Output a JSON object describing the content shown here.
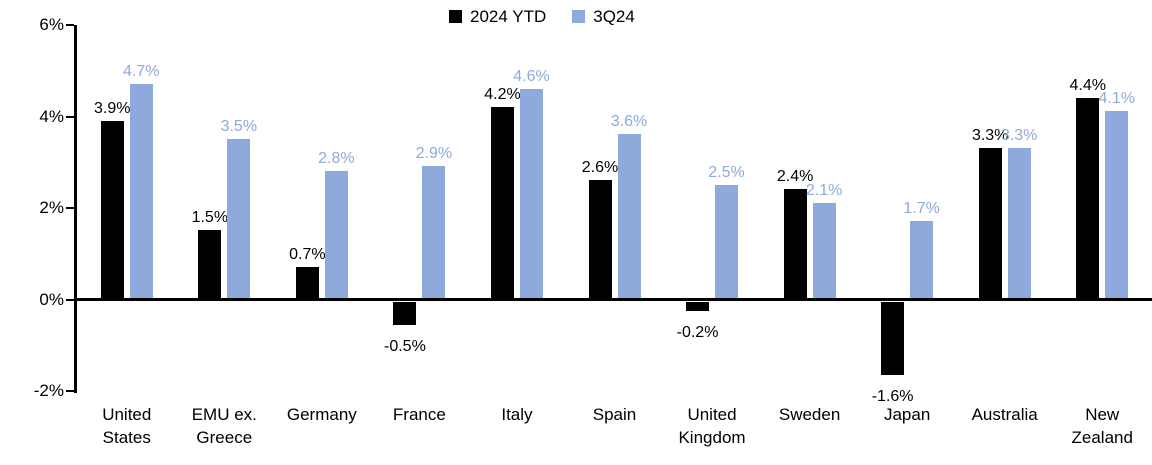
{
  "chart_data": {
    "type": "bar",
    "title": "",
    "categories": [
      "United\nStates",
      "EMU ex.\nGreece",
      "Germany",
      "France",
      "Italy",
      "Spain",
      "United\nKingdom",
      "Sweden",
      "Japan",
      "Australia",
      "New\nZealand"
    ],
    "series": [
      {
        "name": "2024 YTD",
        "color": "#000000",
        "values": [
          3.9,
          1.5,
          0.7,
          -0.5,
          4.2,
          2.6,
          -0.2,
          2.4,
          -1.6,
          3.3,
          4.4
        ],
        "labels": [
          "3.9%",
          "1.5%",
          "0.7%",
          "-0.5%",
          "4.2%",
          "2.6%",
          "-0.2%",
          "2.4%",
          "-1.6%",
          "3.3%",
          "4.4%"
        ]
      },
      {
        "name": "3Q24",
        "color": "#8EA9DB",
        "values": [
          4.7,
          3.5,
          2.8,
          2.9,
          4.6,
          3.6,
          2.5,
          2.1,
          1.7,
          3.3,
          4.1
        ],
        "labels": [
          "4.7%",
          "3.5%",
          "2.8%",
          "2.9%",
          "4.6%",
          "3.6%",
          "2.5%",
          "2.1%",
          "1.7%",
          "3.3%",
          "4.1%"
        ]
      }
    ],
    "y_axis": {
      "min": -2,
      "max": 6,
      "tick_labels": [
        "6%",
        "4%",
        "2%",
        "0%",
        "-2%"
      ]
    },
    "legend": {
      "position": "top-center"
    },
    "grid": false,
    "unit": "%"
  }
}
